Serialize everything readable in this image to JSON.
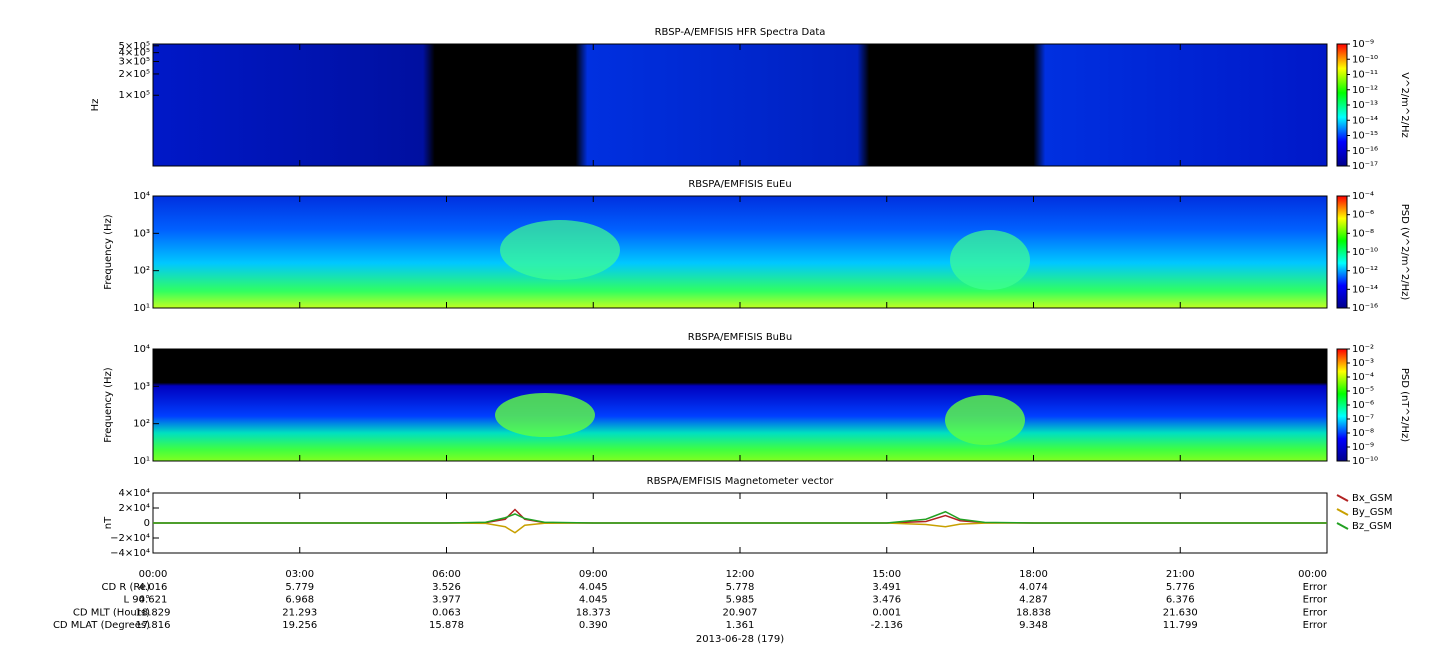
{
  "chart_data": [
    {
      "type": "spectrogram",
      "title": "RBSP-A/EMFISIS  HFR Spectra Data",
      "ylabel": "Hz",
      "log": true,
      "ylim": [
        10000,
        530000
      ],
      "yticks": [
        {
          "value": 100000,
          "label": "1×10⁵"
        },
        {
          "value": 200000,
          "label": "2×10⁵"
        },
        {
          "value": 300000,
          "label": "3×10⁵"
        },
        {
          "value": 400000,
          "label": "4×10⁵"
        },
        {
          "value": 500000,
          "label": "5×10⁵"
        }
      ],
      "colorbar": {
        "label": "V^2/m^2/Hz",
        "clim": [
          1e-17,
          1e-09
        ],
        "colors": [
          "#00008b",
          "#0000ff",
          "#00ffff",
          "#00ff00",
          "#ffff00",
          "#ff0000"
        ],
        "ticks": [
          {
            "value": 1e-09,
            "label": "10⁻⁹"
          },
          {
            "value": 1e-10,
            "label": "10⁻¹⁰"
          },
          {
            "value": 1e-11,
            "label": "10⁻¹¹"
          },
          {
            "value": 1e-12,
            "label": "10⁻¹²"
          },
          {
            "value": 1e-13,
            "label": "10⁻¹³"
          },
          {
            "value": 1e-14,
            "label": "10⁻¹⁴"
          },
          {
            "value": 1e-15,
            "label": "10⁻¹⁵"
          },
          {
            "value": 1e-16,
            "label": "10⁻¹⁶"
          },
          {
            "value": 1e-17,
            "label": "10⁻¹⁷"
          }
        ]
      }
    },
    {
      "type": "spectrogram",
      "title": "RBSPA/EMFISIS  EuEu",
      "ylabel": "Frequency (Hz)",
      "log": true,
      "ylim": [
        10,
        10000
      ],
      "yticks": [
        {
          "value": 10,
          "label": "10¹"
        },
        {
          "value": 100,
          "label": "10²"
        },
        {
          "value": 1000,
          "label": "10³"
        },
        {
          "value": 10000,
          "label": "10⁴"
        }
      ],
      "colorbar": {
        "label": "PSD (V^2/m^2/Hz)",
        "clim": [
          1e-16,
          0.0001
        ],
        "colors": [
          "#00008b",
          "#0000ff",
          "#00ffff",
          "#00ff00",
          "#ffff00",
          "#ff0000"
        ],
        "ticks": [
          {
            "value": 0.0001,
            "label": "10⁻⁴"
          },
          {
            "value": 1e-06,
            "label": "10⁻⁶"
          },
          {
            "value": 1e-08,
            "label": "10⁻⁸"
          },
          {
            "value": 1e-10,
            "label": "10⁻¹⁰"
          },
          {
            "value": 1e-12,
            "label": "10⁻¹²"
          },
          {
            "value": 1e-14,
            "label": "10⁻¹⁴"
          },
          {
            "value": 1e-16,
            "label": "10⁻¹⁶"
          }
        ]
      }
    },
    {
      "type": "spectrogram",
      "title": "RBSPA/EMFISIS  BuBu",
      "ylabel": "Frequency (Hz)",
      "log": true,
      "ylim": [
        10,
        10000
      ],
      "yticks": [
        {
          "value": 10,
          "label": "10¹"
        },
        {
          "value": 100,
          "label": "10²"
        },
        {
          "value": 1000,
          "label": "10³"
        },
        {
          "value": 10000,
          "label": "10⁴"
        }
      ],
      "colorbar": {
        "label": "PSD (nT^2/Hz)",
        "clim": [
          1e-10,
          0.01
        ],
        "colors": [
          "#00008b",
          "#0000ff",
          "#00ffff",
          "#00ff00",
          "#ffff00",
          "#ff0000"
        ],
        "ticks": [
          {
            "value": 0.01,
            "label": "10⁻²"
          },
          {
            "value": 0.001,
            "label": "10⁻³"
          },
          {
            "value": 0.0001,
            "label": "10⁻⁴"
          },
          {
            "value": 1e-05,
            "label": "10⁻⁵"
          },
          {
            "value": 1e-06,
            "label": "10⁻⁶"
          },
          {
            "value": 1e-07,
            "label": "10⁻⁷"
          },
          {
            "value": 1e-08,
            "label": "10⁻⁸"
          },
          {
            "value": 1e-09,
            "label": "10⁻⁹"
          },
          {
            "value": 1e-10,
            "label": "10⁻¹⁰"
          }
        ]
      }
    },
    {
      "type": "line",
      "title": "RBSPA/EMFISIS  Magnetometer vector",
      "ylabel": "nT",
      "log": false,
      "ylim": [
        -40000,
        40000
      ],
      "yticks": [
        {
          "value": 40000,
          "label": "4×10⁴"
        },
        {
          "value": 20000,
          "label": "2×10⁴"
        },
        0,
        {
          "value": -20000,
          "label": "−2×10⁴"
        },
        {
          "value": -40000,
          "label": "−4×10⁴"
        }
      ],
      "xlim": [
        0,
        24
      ],
      "xticks": [
        {
          "value": 0,
          "label": "00:00"
        },
        {
          "value": 3,
          "label": "03:00"
        },
        {
          "value": 6,
          "label": "06:00"
        },
        {
          "value": 9,
          "label": "09:00"
        },
        {
          "value": 12,
          "label": "12:00"
        },
        {
          "value": 15,
          "label": "15:00"
        },
        {
          "value": 18,
          "label": "18:00"
        },
        {
          "value": 21,
          "label": "21:00"
        },
        {
          "value": 24,
          "label": "00:00"
        }
      ],
      "x": [
        0,
        6,
        6.8,
        7.2,
        7.4,
        7.6,
        8,
        9,
        12,
        15,
        15.8,
        16.2,
        16.5,
        17,
        18,
        24
      ],
      "series": [
        {
          "name": "Bx_GSM",
          "color": "#b22222",
          "values": [
            0,
            0,
            500,
            5000,
            18000,
            5000,
            500,
            0,
            0,
            0,
            2000,
            10000,
            3000,
            500,
            0,
            0
          ]
        },
        {
          "name": "By_GSM",
          "color": "#c8a000",
          "values": [
            0,
            0,
            -500,
            -5000,
            -13000,
            -3000,
            -300,
            0,
            0,
            0,
            -2000,
            -5000,
            -1500,
            -200,
            0,
            0
          ]
        },
        {
          "name": "Bz_GSM",
          "color": "#22a022",
          "values": [
            0,
            0,
            1000,
            7000,
            12000,
            6000,
            1000,
            0,
            0,
            0,
            5000,
            15000,
            5000,
            800,
            0,
            0
          ]
        }
      ]
    }
  ],
  "ephemeris": {
    "rows": [
      {
        "label": "CD R (Re)",
        "values": [
          "4.016",
          "5.779",
          "3.526",
          "4.045",
          "5.778",
          "3.491",
          "4.074",
          "5.776",
          "Error"
        ]
      },
      {
        "label": "L 90°",
        "values": [
          "4.621",
          "6.968",
          "3.977",
          "4.045",
          "5.985",
          "3.476",
          "4.287",
          "6.376",
          "Error"
        ]
      },
      {
        "label": "CD MLT (Hours)",
        "values": [
          "18.829",
          "21.293",
          "0.063",
          "18.373",
          "20.907",
          "0.001",
          "18.838",
          "21.630",
          "Error"
        ]
      },
      {
        "label": "CD MLAT (Degrees)",
        "values": [
          "17.816",
          "19.256",
          "15.878",
          "0.390",
          "1.361",
          "-2.136",
          "9.348",
          "11.799",
          "Error"
        ]
      }
    ],
    "date": "2013-06-28 (179)"
  }
}
